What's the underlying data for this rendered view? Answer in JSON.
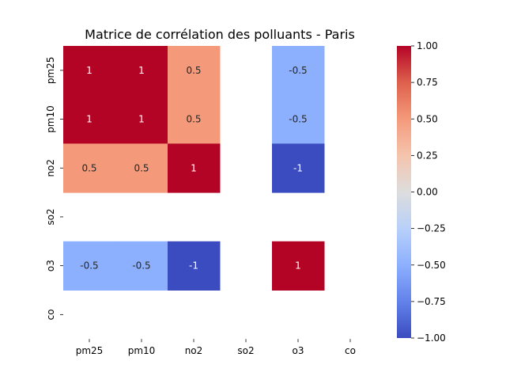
{
  "chart_data": {
    "type": "heatmap",
    "title": "Matrice de corrélation des polluants - Paris",
    "x_labels": [
      "pm25",
      "pm10",
      "no2",
      "so2",
      "o3",
      "co"
    ],
    "y_labels": [
      "pm25",
      "pm10",
      "no2",
      "so2",
      "o3",
      "co"
    ],
    "values": [
      [
        1,
        1,
        0.5,
        null,
        -0.5,
        null
      ],
      [
        1,
        1,
        0.5,
        null,
        -0.5,
        null
      ],
      [
        0.5,
        0.5,
        1,
        null,
        -1,
        null
      ],
      [
        null,
        null,
        null,
        null,
        null,
        null
      ],
      [
        -0.5,
        -0.5,
        -1,
        null,
        1,
        null
      ],
      [
        null,
        null,
        null,
        null,
        null,
        null
      ]
    ],
    "annotations": [
      [
        "1",
        "1",
        "0.5",
        "",
        "-0.5",
        ""
      ],
      [
        "1",
        "1",
        "0.5",
        "",
        "-0.5",
        ""
      ],
      [
        "0.5",
        "0.5",
        "1",
        "",
        "-1",
        ""
      ],
      [
        "",
        "",
        "",
        "",
        "",
        ""
      ],
      [
        "-0.5",
        "-0.5",
        "-1",
        "",
        "1",
        ""
      ],
      [
        "",
        "",
        "",
        "",
        "",
        ""
      ]
    ],
    "colorbar": {
      "vmin": -1,
      "vmax": 1,
      "colormap": "coolwarm",
      "tick_labels": [
        "−1.00",
        "−0.75",
        "−0.50",
        "−0.25",
        "0.00",
        "0.25",
        "0.50",
        "0.75",
        "1.00"
      ]
    },
    "colors": {
      "pos_1": "#b40426",
      "pos_0_5": "#f4987a",
      "neg_0_5": "#9abbff",
      "neg_1": "#3b4cc0"
    }
  }
}
